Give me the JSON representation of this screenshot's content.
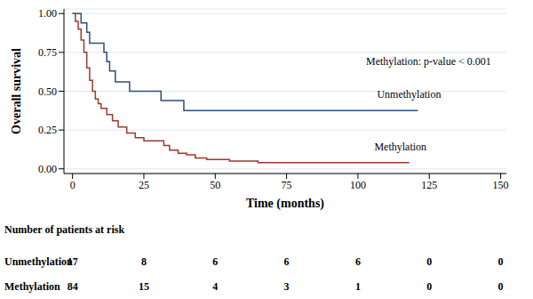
{
  "chart_data": {
    "type": "line",
    "x_label": "Time (months)",
    "y_label": "Overall survival",
    "annotation": "Methylation: p-value < 0.001",
    "xlim": [
      -3,
      152
    ],
    "xticks": [
      0,
      50,
      100,
      150,
      25,
      75,
      125
    ],
    "ylim": [
      -0.03,
      1.03
    ],
    "yticks": [
      {
        "value": 0,
        "label": "0.00"
      },
      {
        "value": 0.25,
        "label": "0.25"
      },
      {
        "value": 0.5,
        "label": "0.50"
      },
      {
        "value": 0.75,
        "label": "0.75"
      },
      {
        "value": 1,
        "label": "1.00"
      }
    ],
    "grid": true,
    "line_style": "step",
    "series": [
      {
        "name": "Unmethylation",
        "color": "#2b4f7e",
        "x": [
          0,
          3,
          5,
          6,
          11,
          12,
          13,
          15,
          20,
          31,
          39,
          121
        ],
        "values": [
          1,
          0.94,
          0.88,
          0.81,
          0.75,
          0.69,
          0.63,
          0.56,
          0.5,
          0.44,
          0.375,
          0.375
        ]
      },
      {
        "name": "Methylation",
        "color": "#9c3a2c",
        "x": [
          0,
          1,
          2,
          3,
          4,
          5,
          6,
          7,
          8,
          9,
          10,
          12,
          14,
          16,
          19,
          22,
          25,
          30,
          32,
          34,
          37,
          40,
          43,
          47,
          55,
          65,
          118
        ],
        "values": [
          1,
          0.95,
          0.9,
          0.83,
          0.75,
          0.65,
          0.57,
          0.5,
          0.45,
          0.42,
          0.39,
          0.35,
          0.31,
          0.27,
          0.23,
          0.2,
          0.18,
          0.18,
          0.15,
          0.12,
          0.1,
          0.09,
          0.07,
          0.06,
          0.05,
          0.04,
          0.04
        ]
      }
    ],
    "risk_table": {
      "title": "Number of patients at risk",
      "times": [
        0,
        25,
        50,
        75,
        100,
        125,
        150
      ],
      "rows": [
        {
          "name": "Unmethylation",
          "values": [
            17,
            8,
            6,
            6,
            6,
            0,
            0
          ]
        },
        {
          "name": "Methylation",
          "values": [
            84,
            15,
            4,
            3,
            1,
            0,
            0
          ]
        }
      ]
    }
  }
}
